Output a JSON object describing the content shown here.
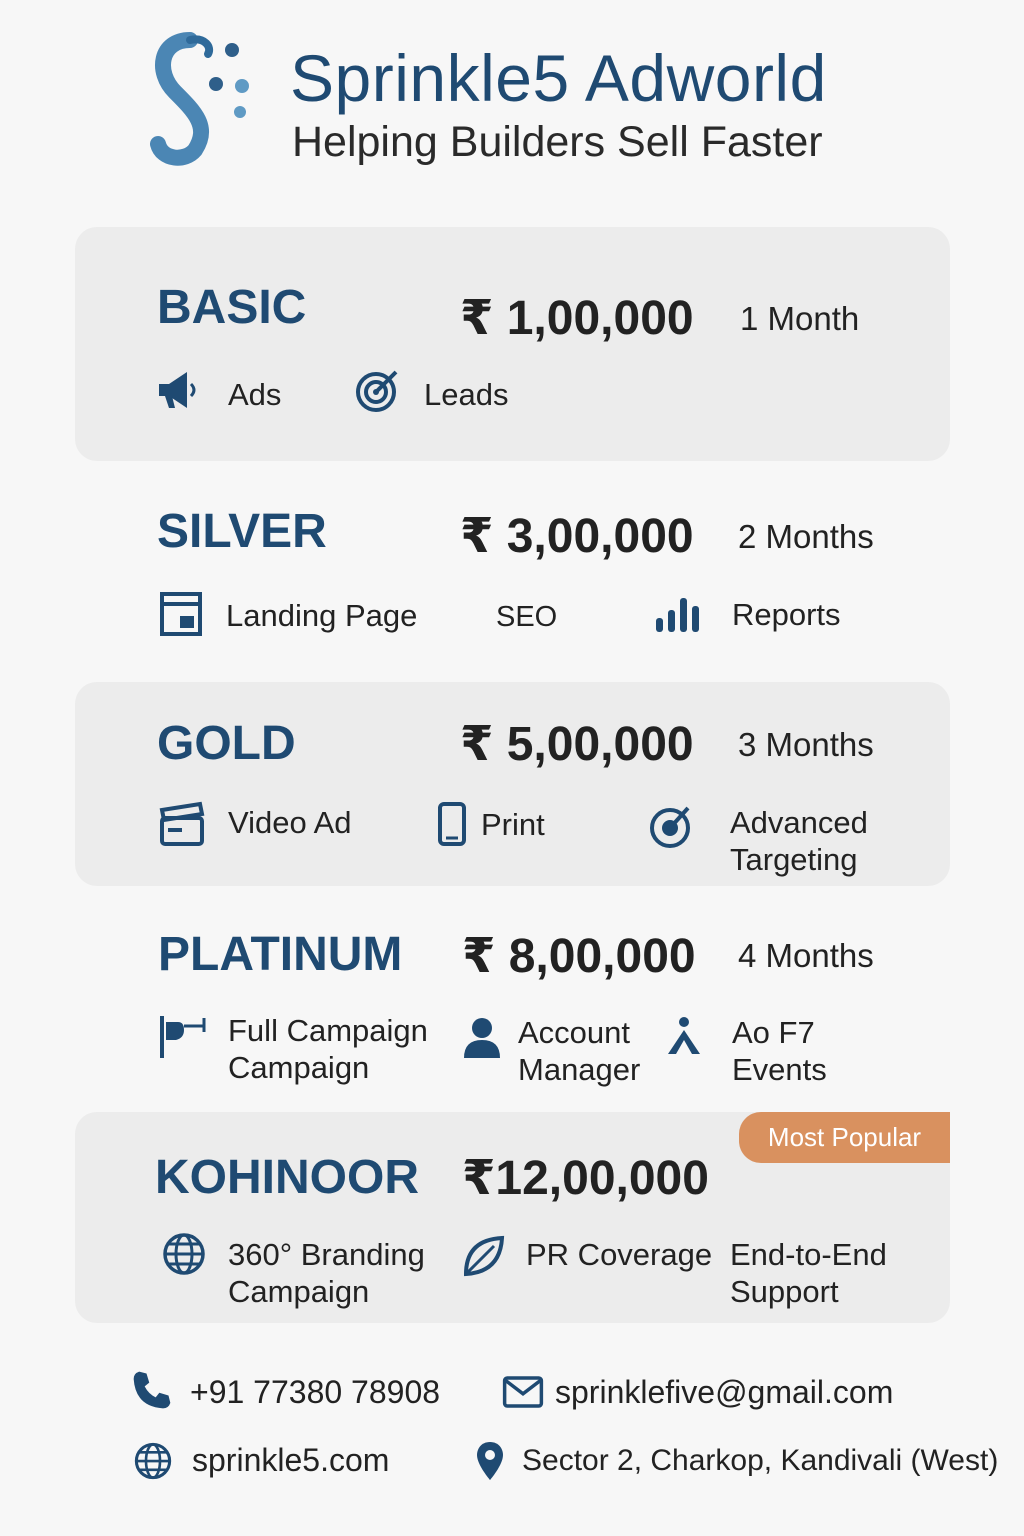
{
  "header": {
    "brand": "Sprinkle5 Adworld",
    "tagline": "Helping Builders Sell Faster"
  },
  "colors": {
    "primary": "#1f4a72",
    "card": "#ececec",
    "badge": "#d9915f",
    "background": "#f7f7f7"
  },
  "tiers": [
    {
      "name": "BASIC",
      "price": "₹ 1,00,000",
      "duration": "1 Month",
      "features": [
        {
          "icon": "megaphone-icon",
          "label": "Ads"
        },
        {
          "icon": "target-icon",
          "label": "Leads"
        }
      ]
    },
    {
      "name": "SILVER",
      "price": "₹ 3,00,000",
      "duration": "2 Months",
      "features": [
        {
          "icon": "landing-page-icon",
          "label": "Landing Page"
        },
        {
          "icon": "",
          "label": "SEO"
        },
        {
          "icon": "bar-chart-icon",
          "label": "Reports"
        }
      ]
    },
    {
      "name": "GOLD",
      "price": "₹ 5,00,000",
      "duration": "3 Months",
      "features": [
        {
          "icon": "clapperboard-icon",
          "label": "Video Ad"
        },
        {
          "icon": "tablet-icon",
          "label": "Print"
        },
        {
          "icon": "target-icon",
          "label": "Advanced Targeting"
        }
      ]
    },
    {
      "name": "PLATINUM",
      "price": "₹ 8,00,000",
      "duration": "4 Months",
      "features": [
        {
          "icon": "flag-icon",
          "label": "Full Campaign Campaign"
        },
        {
          "icon": "person-icon",
          "label": "Account Manager"
        },
        {
          "icon": "event-icon",
          "label": "Ao F7 Events"
        }
      ]
    },
    {
      "name": "KOHINOOR",
      "price": "₹12,00,000",
      "badge": "Most Popular",
      "features": [
        {
          "icon": "globe-icon",
          "label": "360° Branding Campaign"
        },
        {
          "icon": "leaf-icon",
          "label": "PR Coverage"
        },
        {
          "icon": "",
          "label": "End-to-End Support"
        }
      ]
    }
  ],
  "contact": {
    "phone": "+91 77380 78908",
    "email": "sprinklefive@gmail.com",
    "website": "sprinkle5.com",
    "address": "Sector 2, Charkop, Kandivali (West)"
  }
}
